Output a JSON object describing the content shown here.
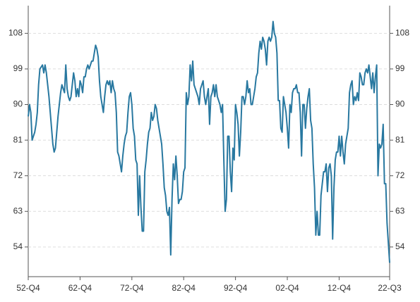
{
  "chart_data": {
    "type": "line",
    "categories": [
      "52-Q4",
      null,
      null,
      null,
      null,
      null,
      null,
      null,
      null,
      null,
      null,
      null,
      null,
      null,
      null,
      null,
      null,
      null,
      null,
      null,
      null,
      null,
      null,
      null,
      null,
      null,
      null,
      null,
      null,
      null,
      null,
      null,
      null,
      null,
      null,
      null,
      null,
      null,
      null,
      null,
      "62-Q4",
      null,
      null,
      null,
      null,
      null,
      null,
      null,
      null,
      null,
      null,
      null,
      null,
      null,
      null,
      null,
      null,
      null,
      null,
      null,
      null,
      null,
      null,
      null,
      null,
      null,
      null,
      null,
      null,
      null,
      null,
      null,
      null,
      null,
      null,
      null,
      null,
      null,
      null,
      null,
      "72-Q4",
      null,
      null,
      null,
      null,
      null,
      null,
      null,
      null,
      null,
      null,
      null,
      null,
      null,
      null,
      null,
      null,
      null,
      null,
      null,
      null,
      null,
      null,
      null,
      null,
      null,
      null,
      null,
      null,
      null,
      null,
      null,
      null,
      null,
      null,
      null,
      null,
      null,
      null,
      null,
      "82-Q4",
      null,
      null,
      null,
      null,
      null,
      null,
      null,
      null,
      null,
      null,
      null,
      null,
      null,
      null,
      null,
      null,
      null,
      null,
      null,
      null,
      null,
      null,
      null,
      null,
      null,
      null,
      null,
      null,
      null,
      null,
      null,
      null,
      null,
      null,
      null,
      null,
      null,
      null,
      null,
      "92-Q4",
      null,
      null,
      null,
      null,
      null,
      null,
      null,
      null,
      null,
      null,
      null,
      null,
      null,
      null,
      null,
      null,
      null,
      null,
      null,
      null,
      null,
      null,
      null,
      null,
      null,
      null,
      null,
      null,
      null,
      null,
      null,
      null,
      null,
      null,
      null,
      null,
      null,
      null,
      null,
      "02-Q4",
      null,
      null,
      null,
      null,
      null,
      null,
      null,
      null,
      null,
      null,
      null,
      null,
      null,
      null,
      null,
      null,
      null,
      null,
      null,
      null,
      null,
      null,
      null,
      null,
      null,
      null,
      null,
      null,
      null,
      null,
      null,
      null,
      null,
      null,
      null,
      null,
      null,
      null,
      null,
      "12-Q4",
      null,
      null,
      null,
      null,
      null,
      null,
      null,
      null,
      null,
      null,
      null,
      null,
      null,
      null,
      null,
      null,
      null,
      null,
      null,
      null,
      null,
      null,
      null,
      null,
      null,
      null,
      null,
      null,
      null,
      null,
      null,
      null,
      null,
      null,
      null,
      null,
      null,
      null,
      "22-Q3"
    ],
    "series": [
      {
        "color": "#2878a0",
        "values": [
          87,
          90,
          88,
          81,
          82,
          83,
          85,
          88,
          95,
          99,
          99.5,
          100,
          98,
          100,
          98,
          95,
          92,
          88,
          84,
          80,
          78,
          79,
          83,
          87,
          90,
          93,
          95,
          94,
          93,
          100,
          94,
          92,
          91,
          92,
          95,
          98,
          96,
          92,
          94,
          92,
          96,
          95,
          93,
          97,
          97,
          99,
          100,
          99,
          100,
          101,
          101,
          103,
          105,
          104,
          102,
          96,
          92,
          90,
          88,
          92,
          95,
          96,
          95,
          96,
          93,
          96,
          94,
          93,
          88,
          78,
          77,
          75,
          73,
          77,
          80,
          82,
          83,
          88,
          92,
          93,
          90,
          84,
          82,
          76,
          75,
          62,
          72,
          64,
          58,
          58,
          73,
          76,
          80,
          83,
          84,
          88,
          86,
          87,
          90,
          89,
          86,
          84,
          82,
          80,
          75,
          69,
          67,
          63,
          62,
          64,
          52,
          66,
          75,
          71,
          77,
          72,
          65,
          66,
          66,
          68,
          73,
          74,
          93,
          90,
          92,
          100,
          96,
          101,
          95,
          94,
          93,
          92,
          90,
          94,
          95,
          96,
          92,
          90,
          92,
          94,
          85,
          92,
          93,
          95,
          92,
          95,
          92,
          91,
          90,
          88,
          90,
          76,
          63,
          66,
          82,
          82,
          73,
          68,
          79,
          76,
          90,
          88,
          85,
          77,
          83,
          92,
          92,
          90,
          92,
          96,
          93,
          94,
          90,
          90,
          92,
          94,
          97,
          98,
          103,
          106,
          104,
          107,
          106,
          104,
          100,
          106,
          107,
          106,
          107,
          111,
          108,
          107,
          103,
          91,
          91,
          84,
          83,
          92,
          90,
          88,
          84,
          79,
          90,
          88,
          93,
          94,
          94,
          95,
          93,
          93,
          88,
          77,
          90,
          90,
          84,
          89,
          92,
          94,
          86,
          84,
          75,
          69,
          57,
          63,
          57,
          57,
          67,
          70,
          73,
          73,
          75,
          68,
          74,
          75,
          72,
          56,
          69,
          76,
          78,
          78,
          82,
          77,
          82,
          78,
          75,
          80,
          82,
          84,
          93,
          95,
          96,
          90,
          92,
          91,
          93,
          91,
          98,
          97,
          95,
          95,
          98,
          99,
          98,
          100,
          97,
          94,
          98,
          93,
          97,
          100,
          72,
          80,
          79,
          80,
          85,
          70,
          70,
          60,
          55,
          50
        ]
      }
    ],
    "ylim": [
      46.5,
      115
    ],
    "yticks": [
      54,
      63,
      72,
      81,
      90,
      99,
      108
    ],
    "grid": true
  }
}
